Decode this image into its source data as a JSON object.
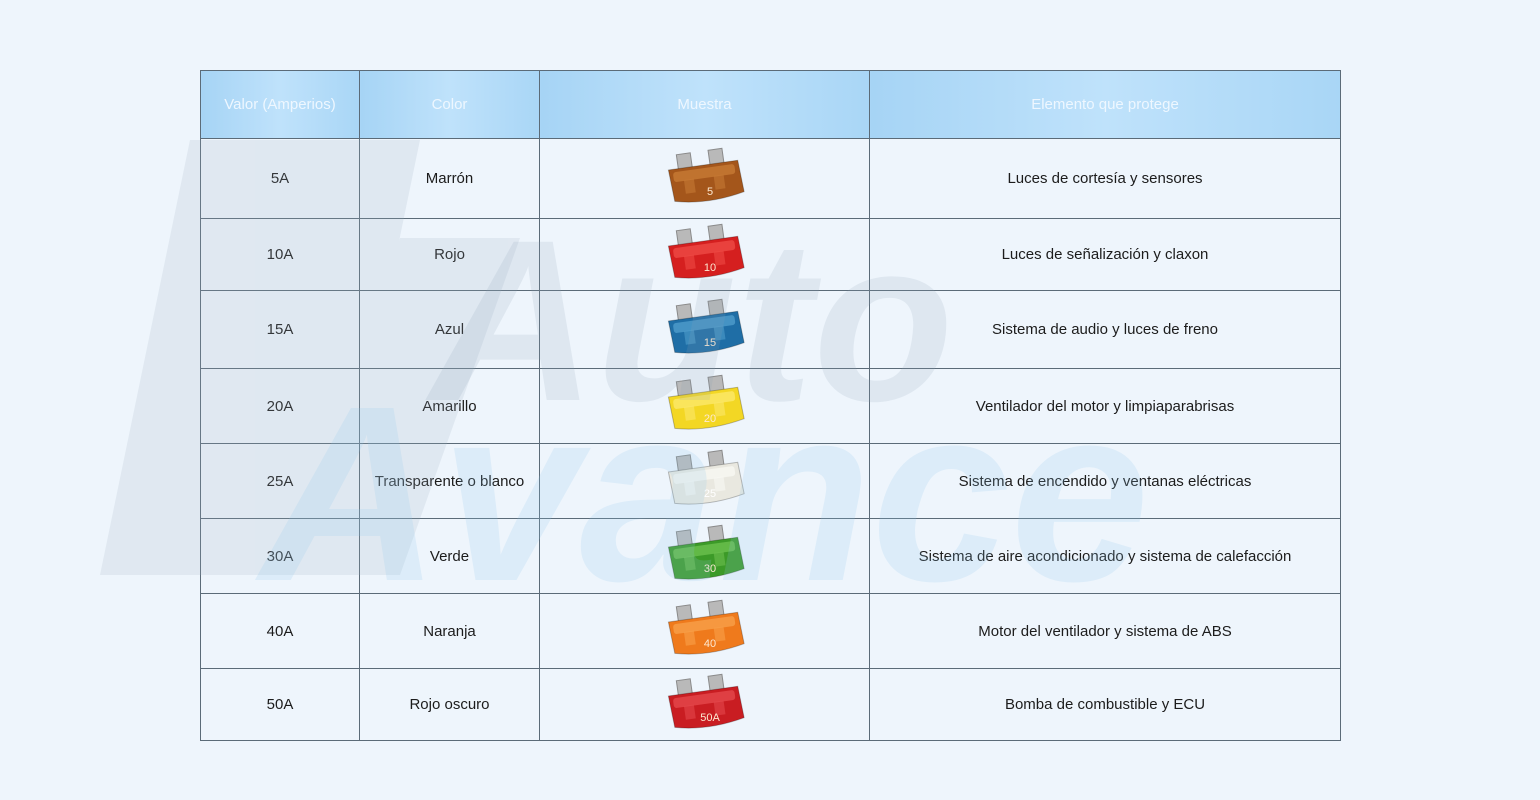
{
  "headers": {
    "amps": "Valor (Amperios)",
    "color": "Color",
    "sample": "Muestra",
    "protects": "Elemento que protege"
  },
  "rows": [
    {
      "amps": "5A",
      "color": "Marrón",
      "fuse_label": "5",
      "fuse_color": "#a4561b",
      "fuse_light": "#c77a35",
      "protects": "Luces de cortesía y sensores"
    },
    {
      "amps": "10A",
      "color": "Rojo",
      "fuse_label": "10",
      "fuse_color": "#d51f1f",
      "fuse_light": "#ee4a45",
      "protects": "Luces de señalización y claxon"
    },
    {
      "amps": "15A",
      "color": "Azul",
      "fuse_label": "15",
      "fuse_color": "#1f6ea6",
      "fuse_light": "#4f9ccc",
      "protects": "Sistema de audio y luces de freno"
    },
    {
      "amps": "20A",
      "color": "Amarillo",
      "fuse_label": "20",
      "fuse_color": "#f3d724",
      "fuse_light": "#fbe86a",
      "protects": "Ventilador del motor y limpiaparabrisas"
    },
    {
      "amps": "25A",
      "color": "Transparente o blanco",
      "fuse_label": "25",
      "fuse_color": "#e9e8e0",
      "fuse_light": "#f8f8f3",
      "protects": "Sistema de encendido y ventanas eléctricas"
    },
    {
      "amps": "30A",
      "color": "Verde",
      "fuse_label": "30",
      "fuse_color": "#3c9a28",
      "fuse_light": "#6cc04e",
      "protects": "Sistema de aire acondicionado y sistema de calefacción"
    },
    {
      "amps": "40A",
      "color": "Naranja",
      "fuse_label": "40",
      "fuse_color": "#ef7a1c",
      "fuse_light": "#f8a04a",
      "protects": "Motor del ventilador y sistema de ABS"
    },
    {
      "amps": "50A",
      "color": "Rojo oscuro",
      "fuse_label": "50A",
      "fuse_color": "#c91d22",
      "fuse_light": "#e5484c",
      "protects": "Bomba de combustible y ECU"
    }
  ],
  "watermark": {
    "line1": "Auto",
    "line2": "Avance"
  }
}
